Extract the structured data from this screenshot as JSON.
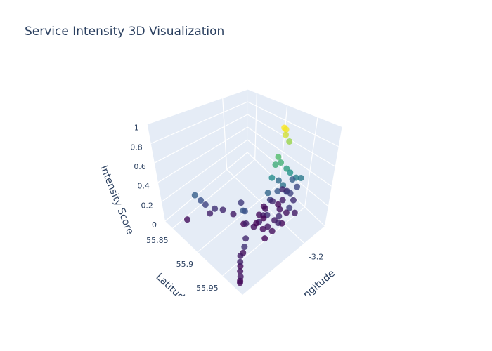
{
  "chart_data": {
    "type": "scatter3d",
    "title": "Service Intensity 3D Visualization",
    "x_label": "Longitude",
    "y_label": "Latitude",
    "z_label": "Intensity Score",
    "colorscale": "Viridis",
    "grid": true,
    "xlim": [
      -3.32,
      -3.16
    ],
    "ylim": [
      55.835,
      55.99
    ],
    "zlim": [
      0,
      1
    ],
    "xticks": [
      -3.2
    ],
    "yticks": [
      55.85,
      55.9,
      55.95
    ],
    "zticks": [
      0,
      0.2,
      0.4,
      0.6,
      0.8,
      1
    ],
    "x": [
      -3.205,
      -3.203,
      -3.204,
      -3.198,
      -3.21,
      -3.207,
      -3.212,
      -3.2,
      -3.195,
      -3.215,
      -3.185,
      -3.178,
      -3.202,
      -3.22,
      -3.29,
      -3.285,
      -3.28,
      -3.27,
      -3.26,
      -3.275,
      -3.25,
      -3.3,
      -3.24,
      -3.26,
      -3.255,
      -3.28,
      -3.29,
      -3.295,
      -3.3,
      -3.305,
      -3.31,
      -3.315,
      -3.312,
      -3.27,
      -3.285,
      -3.24,
      -3.235,
      -3.23,
      -3.225,
      -3.22,
      -3.215,
      -3.21,
      -3.205,
      -3.2,
      -3.195,
      -3.19,
      -3.185,
      -3.18,
      -3.175,
      -3.17,
      -3.238,
      -3.228,
      -3.218,
      -3.208,
      -3.198,
      -3.188,
      -3.178,
      -3.232,
      -3.222,
      -3.212,
      -3.202,
      -3.192,
      -3.182,
      -3.245,
      -3.25,
      -3.226,
      -3.216,
      -3.196,
      -3.186,
      -3.176,
      -3.206
    ],
    "y": [
      55.942,
      55.943,
      55.944,
      55.945,
      55.94,
      55.942,
      55.938,
      55.946,
      55.948,
      55.936,
      55.95,
      55.952,
      55.944,
      55.935,
      55.87,
      55.875,
      55.878,
      55.885,
      55.89,
      55.88,
      55.9,
      55.86,
      55.905,
      55.93,
      55.928,
      55.95,
      55.955,
      55.96,
      55.965,
      55.97,
      55.975,
      55.98,
      55.978,
      55.945,
      55.958,
      55.93,
      55.935,
      55.925,
      55.94,
      55.92,
      55.945,
      55.93,
      55.95,
      55.925,
      55.935,
      55.94,
      55.93,
      55.945,
      55.935,
      55.94,
      55.95,
      55.945,
      55.955,
      55.92,
      55.955,
      55.925,
      55.93,
      55.94,
      55.93,
      55.95,
      55.935,
      55.945,
      55.94,
      55.915,
      55.925,
      55.952,
      55.925,
      55.93,
      55.955,
      55.92,
      55.915
    ],
    "z": [
      0.97,
      0.95,
      0.9,
      0.82,
      0.68,
      0.62,
      0.6,
      0.55,
      0.5,
      0.47,
      0.42,
      0.4,
      0.38,
      0.33,
      0.3,
      0.25,
      0.2,
      0.15,
      0.12,
      0.1,
      0.08,
      0.05,
      0.18,
      0.28,
      0.25,
      0.05,
      0.08,
      0.03,
      0.1,
      0.06,
      0.02,
      0.04,
      0.07,
      0.12,
      0.15,
      0.05,
      0.1,
      0.02,
      0.15,
      0.04,
      0.08,
      0.2,
      0.03,
      0.12,
      0.06,
      0.25,
      0.09,
      0.14,
      0.3,
      0.22,
      0.02,
      0.07,
      0.11,
      0.05,
      0.18,
      0.03,
      0.16,
      0.04,
      0.09,
      0.13,
      0.28,
      0.06,
      0.2,
      0.03,
      0.1,
      0.05,
      0.01,
      0.35,
      0.08,
      0.12,
      0.04
    ]
  }
}
